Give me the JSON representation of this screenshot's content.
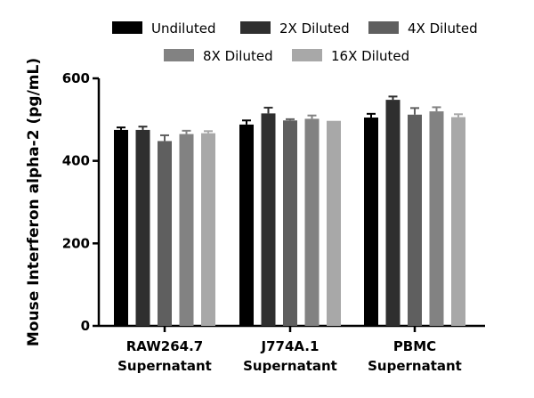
{
  "chart_data": {
    "type": "bar",
    "title": "",
    "xlabel": "",
    "ylabel": "Mouse Interferon alpha-2 (pg/mL)",
    "ylim": [
      0,
      600
    ],
    "yticks": [
      0,
      200,
      400,
      600
    ],
    "grid": false,
    "legend_position": "top",
    "categories": [
      [
        "RAW264.7",
        "Supernatant"
      ],
      [
        "J774A.1",
        "Supernatant"
      ],
      [
        "PBMC",
        "Supernatant"
      ]
    ],
    "series": [
      {
        "name": "Undiluted",
        "color": "#000000",
        "values": [
          475,
          488,
          505
        ],
        "errors": [
          6,
          10,
          9
        ]
      },
      {
        "name": "2X Diluted",
        "color": "#2f2f2f",
        "values": [
          475,
          515,
          548
        ],
        "errors": [
          8,
          14,
          8
        ]
      },
      {
        "name": "4X Diluted",
        "color": "#5f5f5f",
        "values": [
          448,
          498,
          512
        ],
        "errors": [
          14,
          3,
          16
        ]
      },
      {
        "name": "8X Diluted",
        "color": "#828282",
        "values": [
          465,
          502,
          520
        ],
        "errors": [
          8,
          8,
          10
        ]
      },
      {
        "name": "16X Diluted",
        "color": "#a8a8a8",
        "values": [
          467,
          497,
          506
        ],
        "errors": [
          5,
          0,
          7
        ]
      }
    ]
  }
}
